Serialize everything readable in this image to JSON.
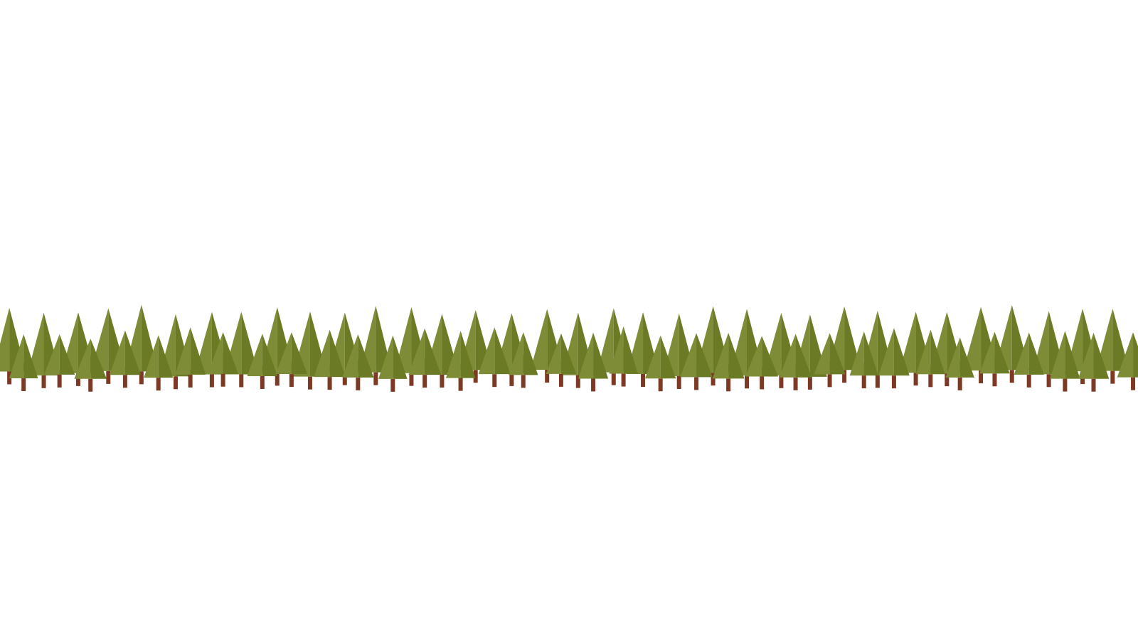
{
  "scene": {
    "background_color": "#ffffff",
    "subject": "forest-row",
    "tree_count": 68,
    "colors": {
      "foliage_light": "#7f8c37",
      "foliage_dark": "#6b7a24",
      "trunk": "#7c3a24"
    }
  }
}
